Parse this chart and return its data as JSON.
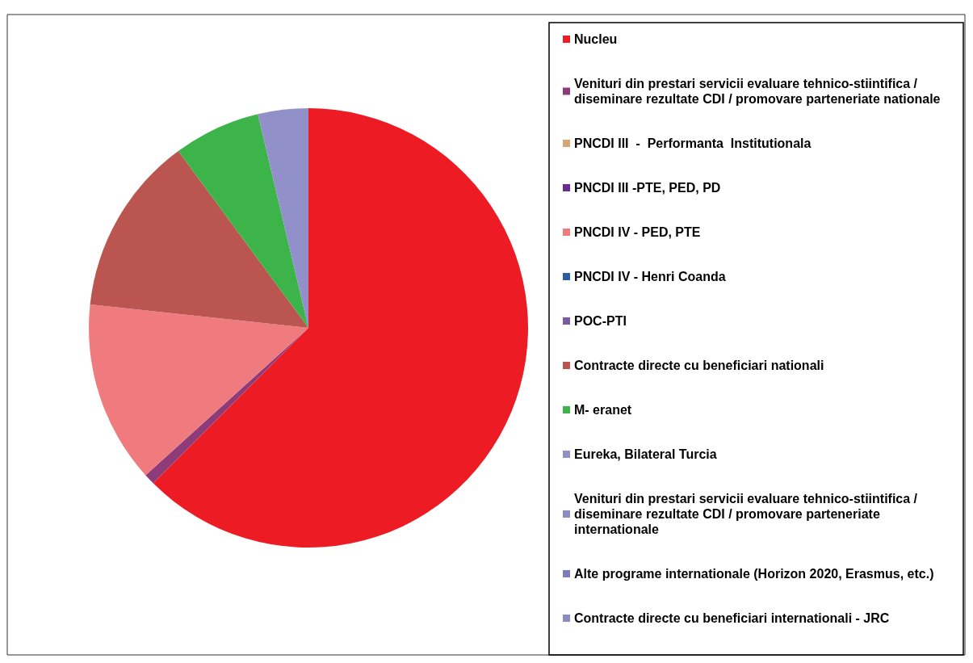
{
  "chart_data": {
    "type": "pie",
    "categories": [
      "Nucleu",
      "Venituri din prestari servicii evaluare tehnico-stiintifica / diseminare rezultate CDI / promovare parteneriate nationale",
      "PNCDI III  -  Performanta  Institutionala",
      "PNCDI III -PTE, PED, PD",
      "PNCDI IV - PED, PTE",
      "PNCDI IV - Henri Coanda",
      "POC-PTI",
      "Contracte directe cu beneficiari nationali",
      "M- eranet",
      "Eureka, Bilateral Turcia",
      "Venituri din prestari servicii evaluare tehnico-stiintifica / diseminare rezultate CDI / promovare parteneriate internationale",
      "Alte programe internationale (Horizon 2020, Erasmus, etc.)",
      "Contracte directe cu beneficiari internationali - JRC"
    ],
    "values": [
      62.5,
      0.8,
      0,
      0,
      13.4,
      0,
      0,
      13.2,
      6.4,
      3.7,
      0,
      0,
      0
    ],
    "colors": [
      "#ed1c24",
      "#8e3b7a",
      "#d9a577",
      "#6a2c91",
      "#f07b7e",
      "#2a5ca8",
      "#7a5aa5",
      "#bb5550",
      "#3cb44a",
      "#9290c8",
      "#8c8cc4",
      "#7d7dbd",
      "#8a8ac6"
    ],
    "legend": "right"
  }
}
